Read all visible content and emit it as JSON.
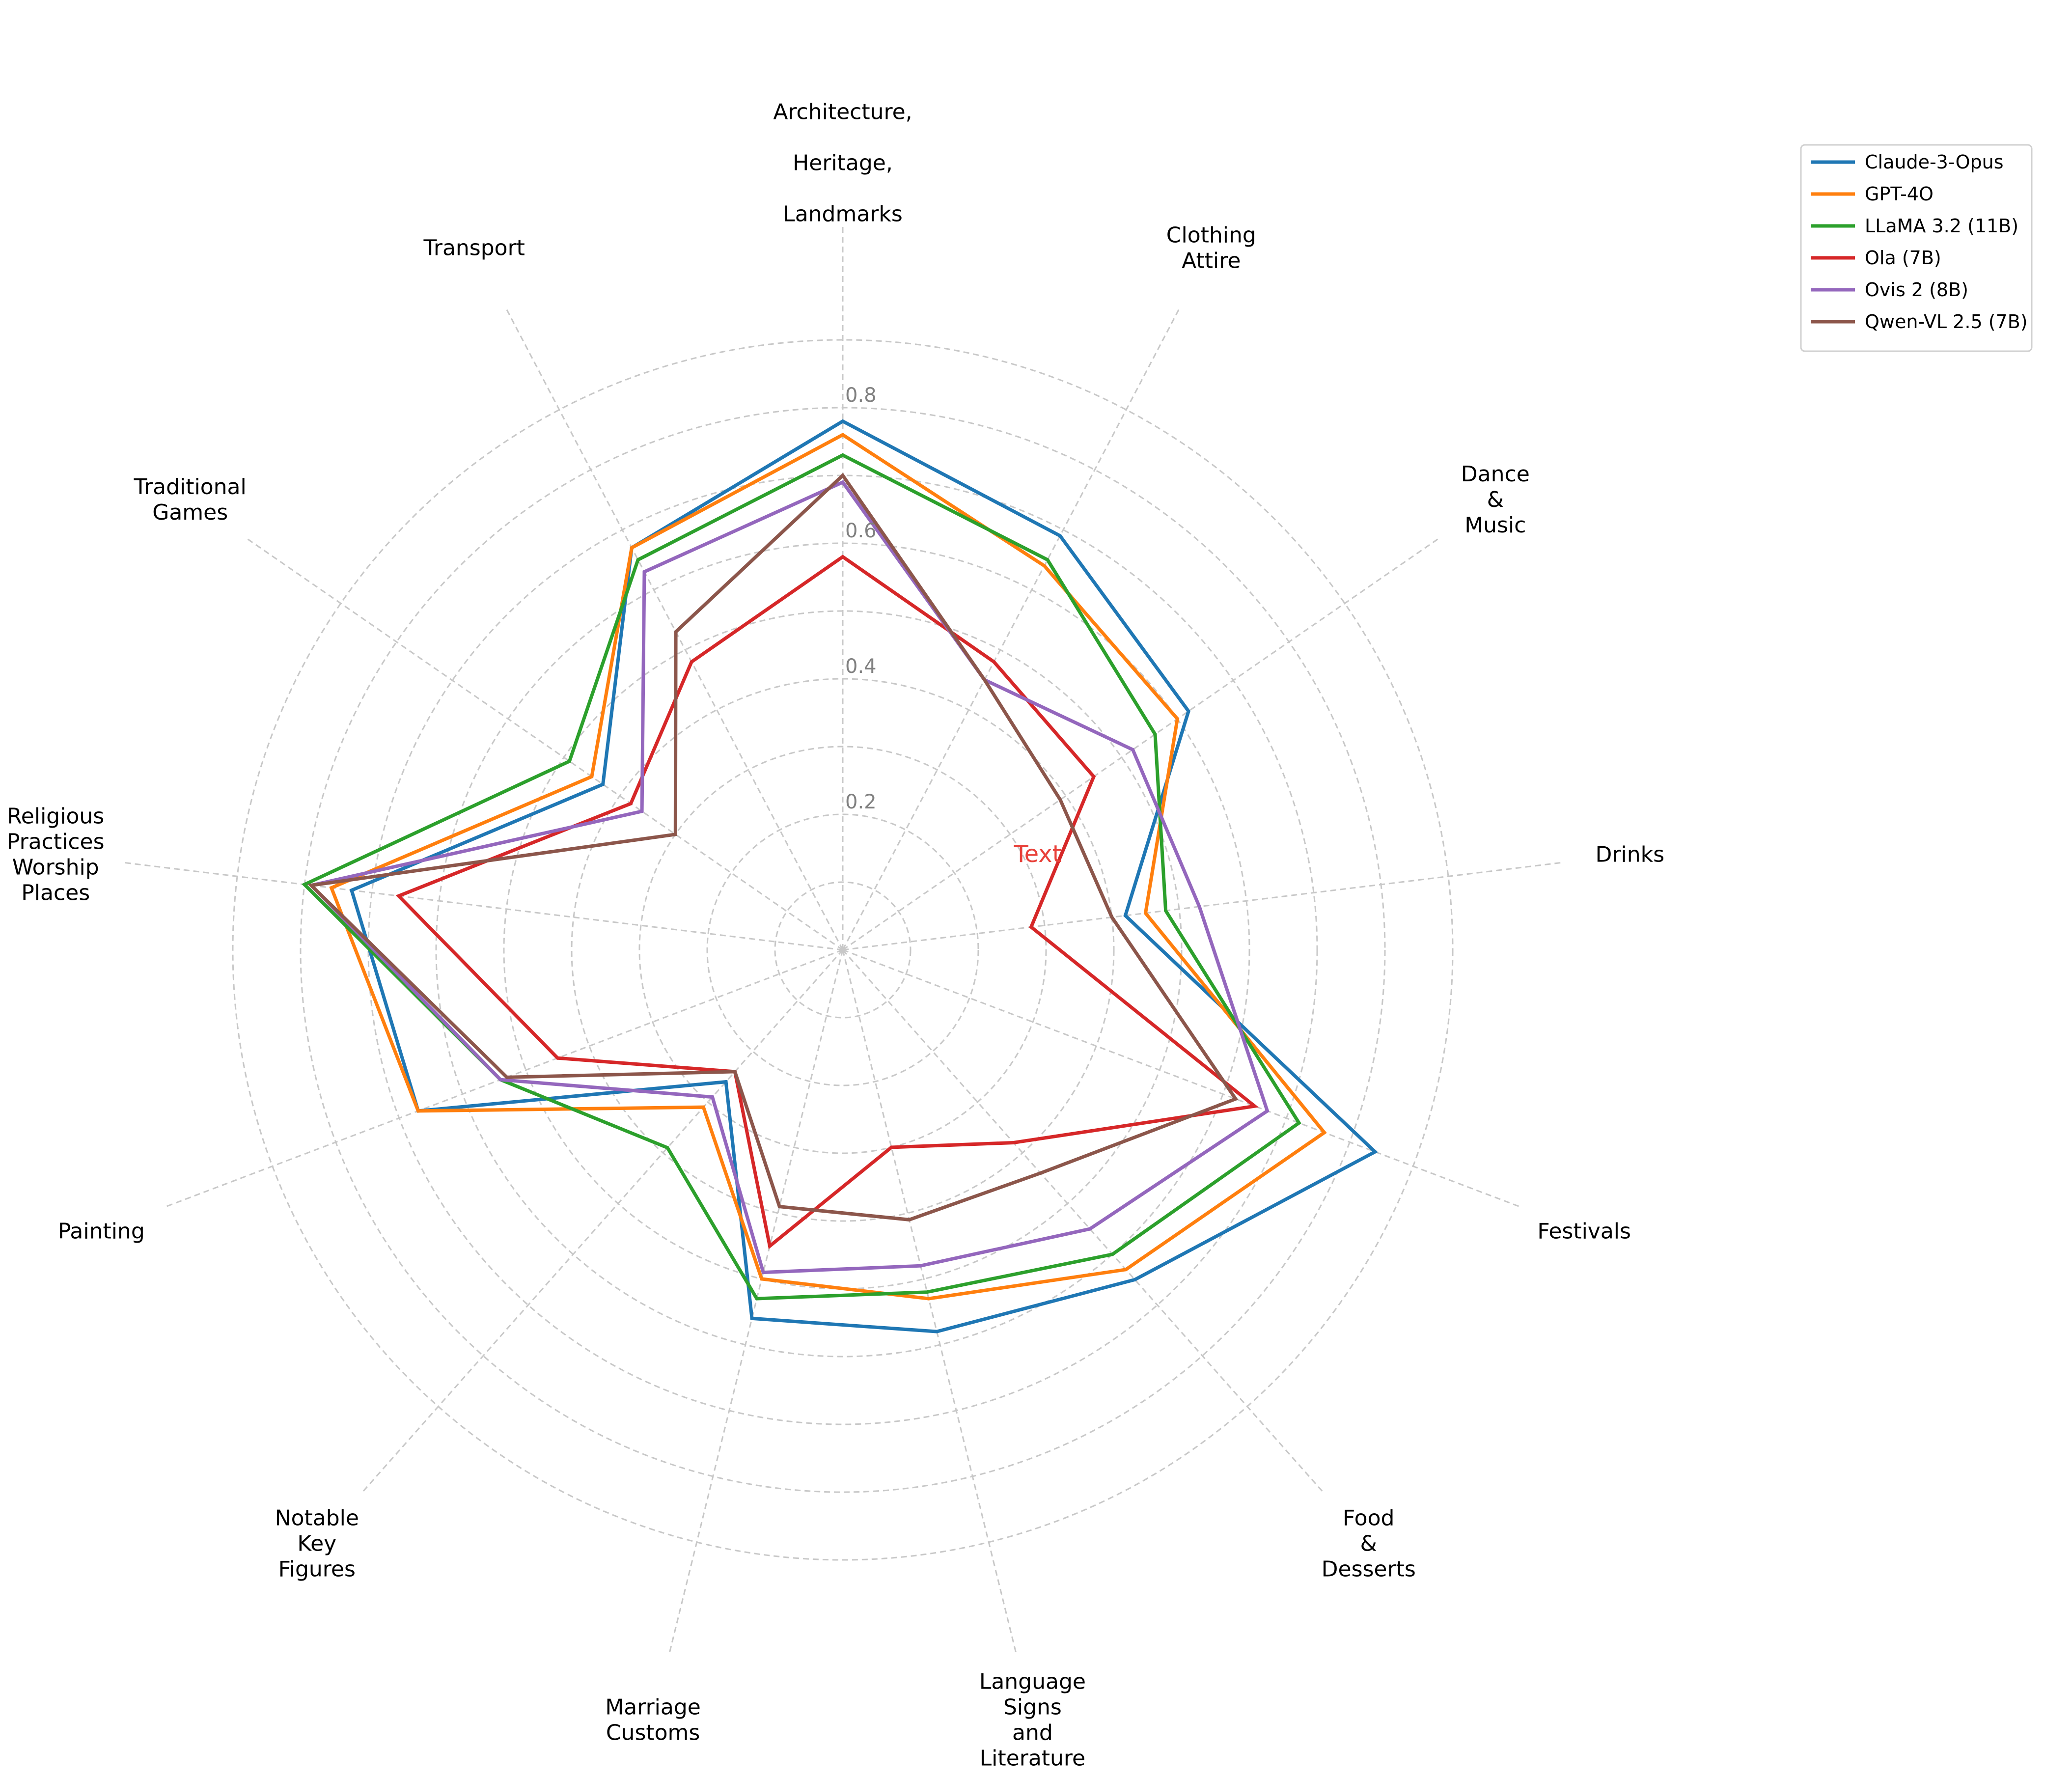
{
  "chart_data": {
    "type": "radar",
    "categories": [
      [
        "Architecture,",
        "Heritage,",
        "Landmarks"
      ],
      [
        "Clothing",
        "Attire"
      ],
      [
        "Dance",
        "&",
        "Music"
      ],
      [
        "Drinks"
      ],
      [
        "Festivals"
      ],
      [
        "Food",
        "&",
        "Desserts"
      ],
      [
        "Language",
        "Signs",
        "and",
        "Literature"
      ],
      [
        "Marriage",
        "Customs"
      ],
      [
        "Notable",
        "Key",
        "Figures"
      ],
      [
        "Painting"
      ],
      [
        "Religious",
        "Practices",
        "Worship",
        "Places"
      ],
      [
        "Traditional",
        "Games"
      ],
      [
        "Transport"
      ]
    ],
    "rlim": [
      0,
      0.9
    ],
    "rticks": [
      0.2,
      0.4,
      0.6,
      0.8
    ],
    "rtick_labels": [
      "0.2",
      "0.4",
      "0.6",
      "0.8"
    ],
    "grid": true,
    "legend_position": "top-right",
    "center_annotation": "Text",
    "center_annotation_color": "#e8413a",
    "series": [
      {
        "name": "Claude-3-Opus",
        "color": "#1f77b4",
        "values": [
          0.78,
          0.69,
          0.62,
          0.42,
          0.84,
          0.65,
          0.58,
          0.56,
          0.26,
          0.67,
          0.73,
          0.43,
          0.67
        ]
      },
      {
        "name": "GPT-4O",
        "color": "#ff7f0e",
        "values": [
          0.76,
          0.64,
          0.6,
          0.45,
          0.76,
          0.63,
          0.53,
          0.5,
          0.31,
          0.67,
          0.76,
          0.45,
          0.67
        ]
      },
      {
        "name": "LLaMA 3.2 (11B)",
        "color": "#2ca02c",
        "values": [
          0.73,
          0.65,
          0.56,
          0.48,
          0.72,
          0.6,
          0.52,
          0.53,
          0.39,
          0.54,
          0.8,
          0.49,
          0.65
        ]
      },
      {
        "name": "Ola (7B)",
        "color": "#d62728",
        "values": [
          0.58,
          0.48,
          0.45,
          0.28,
          0.65,
          0.38,
          0.3,
          0.45,
          0.24,
          0.45,
          0.66,
          0.38,
          0.48
        ]
      },
      {
        "name": "Ovis 2 (8B)",
        "color": "#9467bd",
        "values": [
          0.69,
          0.45,
          0.52,
          0.53,
          0.67,
          0.55,
          0.48,
          0.49,
          0.29,
          0.54,
          0.79,
          0.36,
          0.63
        ]
      },
      {
        "name": "Qwen-VL 2.5 (7B)",
        "color": "#8c564b",
        "values": [
          0.7,
          0.45,
          0.39,
          0.4,
          0.62,
          0.44,
          0.41,
          0.39,
          0.24,
          0.53,
          0.79,
          0.3,
          0.53
        ]
      }
    ]
  }
}
